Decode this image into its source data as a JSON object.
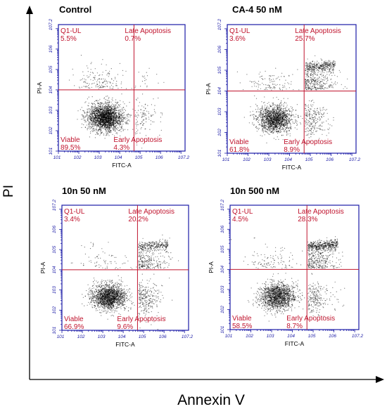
{
  "figure": {
    "y_axis_label": "PI",
    "x_axis_label": "Annexin V"
  },
  "colors": {
    "gate_border": "#1a1aa6",
    "quadrant_line": "#c0142e",
    "quadrant_text": "#c0142e",
    "dots": "#000000"
  },
  "chart_data": [
    {
      "type": "scatter",
      "title": "Control",
      "xlabel": "FITC-A",
      "ylabel": "PI-A",
      "log_scale": true,
      "xlim_exp": [
        1,
        7.2
      ],
      "ylim_exp": [
        1,
        7.2
      ],
      "x_ticks": [
        "10^1",
        "10^2",
        "10^3",
        "10^4",
        "10^5",
        "10^6",
        "10^7.2"
      ],
      "y_ticks": [
        "10^1",
        "10^2",
        "10^3",
        "10^4",
        "10^5",
        "10^6",
        "10^7.2"
      ],
      "quadrant_gate_exp": {
        "x": 4.7,
        "y": 4.0
      },
      "quadrants": {
        "ul": {
          "label": "Q1-UL",
          "value": "5.5%"
        },
        "ur": {
          "label": "Late Apoptosis",
          "value": "0.7%"
        },
        "ll": {
          "label": "Viable",
          "value": "89.5%"
        },
        "lr": {
          "label": "Early Apoptosis",
          "value": "4.3%"
        }
      }
    },
    {
      "type": "scatter",
      "title": "CA-4 50 nM",
      "xlabel": "FITC-A",
      "ylabel": "PI-A",
      "log_scale": true,
      "xlim_exp": [
        1,
        7.2
      ],
      "ylim_exp": [
        1,
        7.2
      ],
      "x_ticks": [
        "10^1",
        "10^2",
        "10^3",
        "10^4",
        "10^5",
        "10^6",
        "10^7.2"
      ],
      "y_ticks": [
        "10^1",
        "10^2",
        "10^3",
        "10^4",
        "10^5",
        "10^6",
        "10^7.2"
      ],
      "quadrant_gate_exp": {
        "x": 4.7,
        "y": 4.0
      },
      "quadrants": {
        "ul": {
          "label": "Q1-UL",
          "value": "3.6%"
        },
        "ur": {
          "label": "Late Apoptosis",
          "value": "25.7%"
        },
        "ll": {
          "label": "Viable",
          "value": "61.8%"
        },
        "lr": {
          "label": "Early Apoptosis",
          "value": "8.9%"
        }
      }
    },
    {
      "type": "scatter",
      "title": "10n 50 nM",
      "xlabel": "FITC-A",
      "ylabel": "PI-A",
      "log_scale": true,
      "xlim_exp": [
        1,
        7.2
      ],
      "ylim_exp": [
        1,
        7.2
      ],
      "x_ticks": [
        "10^1",
        "10^2",
        "10^3",
        "10^4",
        "10^5",
        "10^6",
        "10^7.2"
      ],
      "y_ticks": [
        "10^1",
        "10^2",
        "10^3",
        "10^4",
        "10^5",
        "10^6",
        "10^7.2"
      ],
      "quadrant_gate_exp": {
        "x": 4.7,
        "y": 4.0
      },
      "quadrants": {
        "ul": {
          "label": "Q1-UL",
          "value": "3.4%"
        },
        "ur": {
          "label": "Late Apoptosis",
          "value": "20.2%"
        },
        "ll": {
          "label": "Viable",
          "value": "66.9%"
        },
        "lr": {
          "label": "Early Apoptosis",
          "value": "9.6%"
        }
      }
    },
    {
      "type": "scatter",
      "title": "10n 500 nM",
      "xlabel": "FITC-A",
      "ylabel": "PI-A",
      "log_scale": true,
      "xlim_exp": [
        1,
        7.2
      ],
      "ylim_exp": [
        1,
        7.2
      ],
      "x_ticks": [
        "10^1",
        "10^2",
        "10^3",
        "10^4",
        "10^5",
        "10^6",
        "10^7.2"
      ],
      "y_ticks": [
        "10^1",
        "10^2",
        "10^3",
        "10^4",
        "10^5",
        "10^6",
        "10^7.2"
      ],
      "quadrant_gate_exp": {
        "x": 4.7,
        "y": 4.0
      },
      "quadrants": {
        "ul": {
          "label": "Q1-UL",
          "value": "4.5%"
        },
        "ur": {
          "label": "Late Apoptosis",
          "value": "28.3%"
        },
        "ll": {
          "label": "Viable",
          "value": "58.5%"
        },
        "lr": {
          "label": "Early Apoptosis",
          "value": "8.7%"
        }
      }
    }
  ]
}
